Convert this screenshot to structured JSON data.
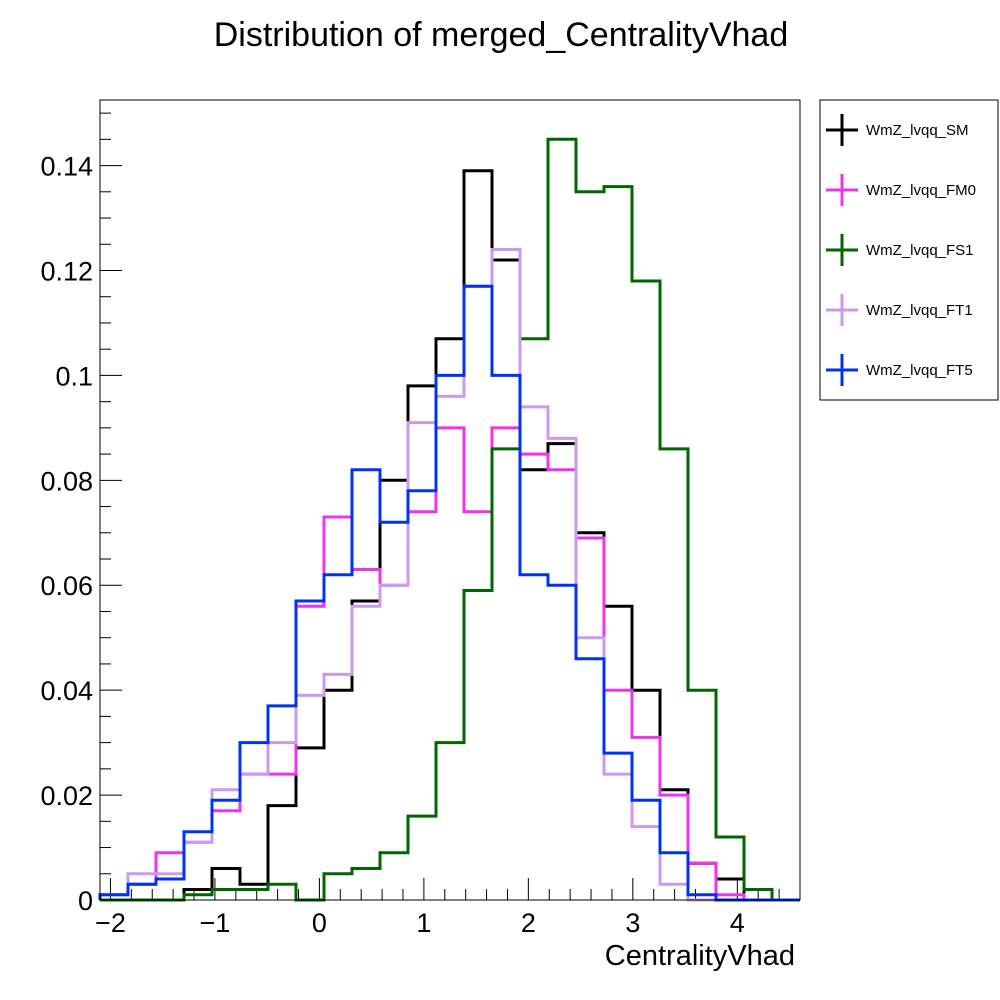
{
  "chart_data": {
    "type": "histogram",
    "title": "Distribution of merged_CentralityVhad",
    "xlabel": "CentralityVhad",
    "ylabel": "",
    "xlim": [
      -2.1,
      4.6
    ],
    "ylim": [
      0,
      0.1525
    ],
    "grid": false,
    "legend_placement": "outside-right-top",
    "bin_edges": [
      -2.1,
      -1.832,
      -1.564,
      -1.296,
      -1.028,
      -0.76,
      -0.492,
      -0.224,
      0.044,
      0.312,
      0.58,
      0.848,
      1.116,
      1.384,
      1.652,
      1.92,
      2.188,
      2.456,
      2.724,
      2.992,
      3.26,
      3.528,
      3.796,
      4.064,
      4.332,
      4.6
    ],
    "x_ticks": [
      {
        "value": -2,
        "label": "−2"
      },
      {
        "value": -1,
        "label": "−1"
      },
      {
        "value": 0,
        "label": "0"
      },
      {
        "value": 1,
        "label": "1"
      },
      {
        "value": 2,
        "label": "2"
      },
      {
        "value": 3,
        "label": "3"
      },
      {
        "value": 4,
        "label": "4"
      }
    ],
    "y_ticks": [
      {
        "value": 0,
        "label": "0"
      },
      {
        "value": 0.02,
        "label": "0.02"
      },
      {
        "value": 0.04,
        "label": "0.04"
      },
      {
        "value": 0.06,
        "label": "0.06"
      },
      {
        "value": 0.08,
        "label": "0.08"
      },
      {
        "value": 0.1,
        "label": "0.1"
      },
      {
        "value": 0.12,
        "label": "0.12"
      },
      {
        "value": 0.14,
        "label": "0.14"
      }
    ],
    "series": [
      {
        "name": "WmZ_lvqq_SM",
        "color": "#000000",
        "values": [
          0,
          0,
          0,
          0.002,
          0.006,
          0.003,
          0.018,
          0.029,
          0.04,
          0.057,
          0.08,
          0.098,
          0.107,
          0.139,
          0.122,
          0.082,
          0.087,
          0.07,
          0.056,
          0.04,
          0.021,
          0.007,
          0.004,
          0,
          0
        ]
      },
      {
        "name": "WmZ_lvqq_FM0",
        "color": "#ee33ee",
        "values": [
          0.001,
          0.003,
          0.009,
          0.011,
          0.017,
          0.024,
          0.024,
          0.056,
          0.073,
          0.063,
          0.06,
          0.074,
          0.09,
          0.074,
          0.09,
          0.085,
          0.082,
          0.069,
          0.04,
          0.031,
          0.02,
          0.007,
          0.001,
          0,
          0
        ]
      },
      {
        "name": "WmZ_lvqq_FS1",
        "color": "#006600",
        "values": [
          0,
          0,
          0,
          0.001,
          0.002,
          0.002,
          0.003,
          0,
          0.005,
          0.006,
          0.009,
          0.016,
          0.03,
          0.059,
          0.086,
          0.107,
          0.145,
          0.135,
          0.136,
          0.118,
          0.086,
          0.04,
          0.012,
          0.002,
          0
        ]
      },
      {
        "name": "WmZ_lvqq_FT1",
        "color": "#cc99ee",
        "values": [
          0.001,
          0.005,
          0.005,
          0.011,
          0.021,
          0.024,
          0.03,
          0.039,
          0.043,
          0.056,
          0.06,
          0.091,
          0.096,
          0.117,
          0.124,
          0.094,
          0.088,
          0.05,
          0.024,
          0.014,
          0.003,
          0,
          0,
          0,
          0
        ]
      },
      {
        "name": "WmZ_lvqq_FT5",
        "color": "#0033ee",
        "values": [
          0.001,
          0.003,
          0.004,
          0.013,
          0.019,
          0.03,
          0.037,
          0.057,
          0.062,
          0.082,
          0.072,
          0.078,
          0.1,
          0.117,
          0.1,
          0.062,
          0.06,
          0.046,
          0.028,
          0.019,
          0.009,
          0.001,
          0,
          0,
          0
        ]
      }
    ]
  }
}
